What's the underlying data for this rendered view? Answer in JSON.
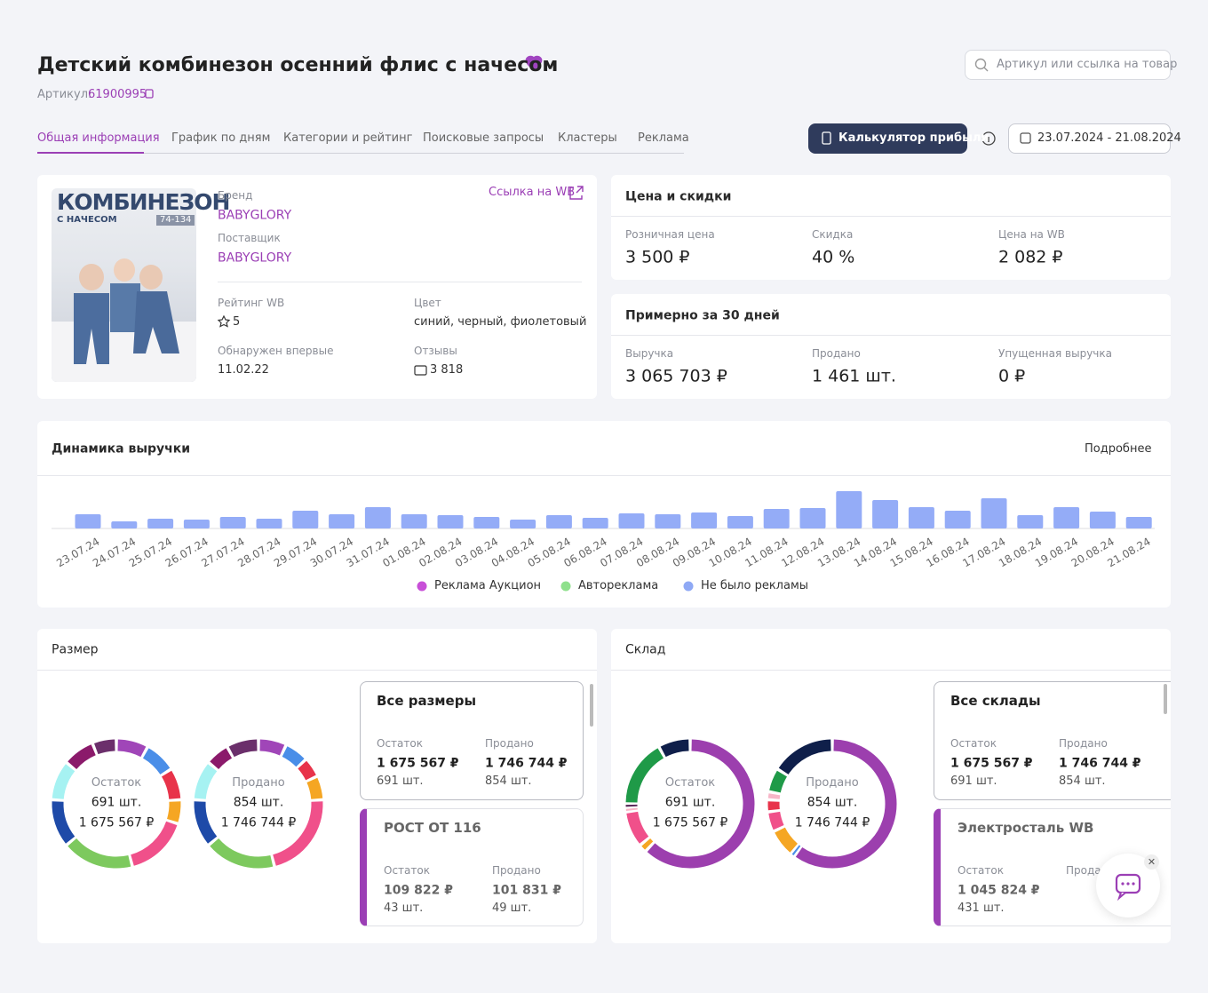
{
  "header": {
    "title": "Детский комбинезон осенний флис с начесом",
    "article_label": "Артикул:",
    "article": "61900995",
    "search_placeholder": "Артикул или ссылка на товар"
  },
  "tabs": [
    "Общая информация",
    "График по дням",
    "Категории и рейтинг",
    "Поисковые запросы",
    "Кластеры",
    "Реклама"
  ],
  "calc_button": "Калькулятор прибыли",
  "date_range": "23.07.2024 - 21.08.2024",
  "product": {
    "image_title": "КОМБИНЕЗОН",
    "image_subtitle": "С НАЧЕСОМ",
    "image_sizes": "74-134",
    "link": "Ссылка на WB",
    "brand_label": "Бренд",
    "brand": "BABYGLORY",
    "supplier_label": "Поставщик",
    "supplier": "BABYGLORY",
    "rating_label": "Рейтинг WB",
    "rating": "5",
    "color_label": "Цвет",
    "color": "синий, черный, фиолетовый",
    "first_seen_label": "Обнаружен впервые",
    "first_seen": "11.02.22",
    "reviews_label": "Отзывы",
    "reviews": "3 818"
  },
  "price": {
    "title": "Цена и скидки",
    "items": [
      {
        "label": "Розничная цена",
        "value": "3 500 ₽"
      },
      {
        "label": "Скидка",
        "value": "40 %"
      },
      {
        "label": "Цена на WB",
        "value": "2 082 ₽"
      }
    ]
  },
  "month": {
    "title": "Примерно за 30 дней",
    "items": [
      {
        "label": "Выручка",
        "value": "3 065 703 ₽"
      },
      {
        "label": "Продано",
        "value": "1 461 шт."
      },
      {
        "label": "Упущенная выручка",
        "value": "0 ₽"
      }
    ]
  },
  "chart_data": {
    "type": "bar",
    "title": "Динамика выручки",
    "more": "Подробнее",
    "categories": [
      "23.07.24",
      "24.07.24",
      "25.07.24",
      "26.07.24",
      "27.07.24",
      "28.07.24",
      "29.07.24",
      "30.07.24",
      "31.07.24",
      "01.08.24",
      "02.08.24",
      "03.08.24",
      "04.08.24",
      "05.08.24",
      "06.08.24",
      "07.08.24",
      "08.08.24",
      "09.08.24",
      "10.08.24",
      "11.08.24",
      "12.08.24",
      "13.08.24",
      "14.08.24",
      "15.08.24",
      "16.08.24",
      "17.08.24",
      "18.08.24",
      "19.08.24",
      "20.08.24",
      "21.08.24"
    ],
    "values": [
      16,
      8,
      11,
      10,
      13,
      11,
      20,
      16,
      24,
      16,
      15,
      13,
      10,
      15,
      12,
      17,
      16,
      18,
      14,
      22,
      23,
      42,
      32,
      24,
      20,
      34,
      15,
      24,
      19,
      13
    ],
    "color": "#94acf7",
    "ylim": [
      0,
      45
    ],
    "legend": [
      {
        "name": "Реклама Аукцион",
        "color": "#c84fd8"
      },
      {
        "name": "Автореклама",
        "color": "#8fe08c"
      },
      {
        "name": "Не было рекламы",
        "color": "#8fa9f5"
      }
    ]
  },
  "size": {
    "title": "Размер",
    "donuts": [
      {
        "label": "Остаток",
        "count": "691 шт.",
        "sum": "1 675 567 ₽",
        "segments": [
          {
            "color": "#a046b8",
            "value": 8
          },
          {
            "color": "#4a8ee8",
            "value": 8
          },
          {
            "color": "#e8334a",
            "value": 8
          },
          {
            "color": "#f5a623",
            "value": 6
          },
          {
            "color": "#f0508a",
            "value": 16
          },
          {
            "color": "#7dc95e",
            "value": 18
          },
          {
            "color": "#1e4aa8",
            "value": 12
          },
          {
            "color": "#a6f2f2",
            "value": 10
          },
          {
            "color": "#8b1a6b",
            "value": 8
          },
          {
            "color": "#6b2f6b",
            "value": 6
          }
        ]
      },
      {
        "label": "Продано",
        "count": "854 шт.",
        "sum": "1 746 744 ₽",
        "segments": [
          {
            "color": "#a046b8",
            "value": 7
          },
          {
            "color": "#4a8ee8",
            "value": 6
          },
          {
            "color": "#e8334a",
            "value": 5
          },
          {
            "color": "#f5a623",
            "value": 6
          },
          {
            "color": "#f0508a",
            "value": 22
          },
          {
            "color": "#7dc95e",
            "value": 18
          },
          {
            "color": "#1e4aa8",
            "value": 12
          },
          {
            "color": "#a6f2f2",
            "value": 10
          },
          {
            "color": "#8b1a6b",
            "value": 6
          },
          {
            "color": "#6b2f6b",
            "value": 8
          }
        ]
      }
    ],
    "cards": [
      {
        "title": "Все размеры",
        "stock_label": "Остаток",
        "stock_value": "1 675 567 ₽",
        "stock_count": "691 шт.",
        "sold_label": "Продано",
        "sold_value": "1 746 744 ₽",
        "sold_count": "854 шт."
      },
      {
        "title": "РОСТ ОТ 116",
        "stock_label": "Остаток",
        "stock_value": "109 822 ₽",
        "stock_count": "43 шт.",
        "sold_label": "Продано",
        "sold_value": "101 831 ₽",
        "sold_count": "49 шт."
      }
    ]
  },
  "warehouse": {
    "title": "Склад",
    "donuts": [
      {
        "label": "Остаток",
        "count": "691 шт.",
        "sum": "1 675 567 ₽",
        "segments": [
          {
            "color": "#9c3fae",
            "value": 62
          },
          {
            "color": "#f5a623",
            "value": 2
          },
          {
            "color": "#f0508a",
            "value": 9
          },
          {
            "color": "#f7b6c8",
            "value": 1
          },
          {
            "color": "#5a2a5a",
            "value": 1
          },
          {
            "color": "#1f9a48",
            "value": 17
          },
          {
            "color": "#0f1f4a",
            "value": 8
          }
        ]
      },
      {
        "label": "Продано",
        "count": "854 шт.",
        "sum": "1 746 744 ₽",
        "segments": [
          {
            "color": "#9c3fae",
            "value": 60
          },
          {
            "color": "#4a8ee8",
            "value": 1
          },
          {
            "color": "#f5a623",
            "value": 7
          },
          {
            "color": "#f0508a",
            "value": 5
          },
          {
            "color": "#e8334a",
            "value": 3
          },
          {
            "color": "#f7b6c8",
            "value": 2
          },
          {
            "color": "#1f9a48",
            "value": 6
          },
          {
            "color": "#0f1f4a",
            "value": 16
          }
        ]
      }
    ],
    "cards": [
      {
        "title": "Все склады",
        "stock_label": "Остаток",
        "stock_value": "1 675 567 ₽",
        "stock_count": "691 шт.",
        "sold_label": "Продано",
        "sold_value": "1 746 744 ₽",
        "sold_count": "854 шт."
      },
      {
        "title": "Электросталь WB",
        "stock_label": "Остаток",
        "stock_value": "1 045 824 ₽",
        "stock_count": "431 шт.",
        "sold_label": "Продано"
      }
    ]
  }
}
